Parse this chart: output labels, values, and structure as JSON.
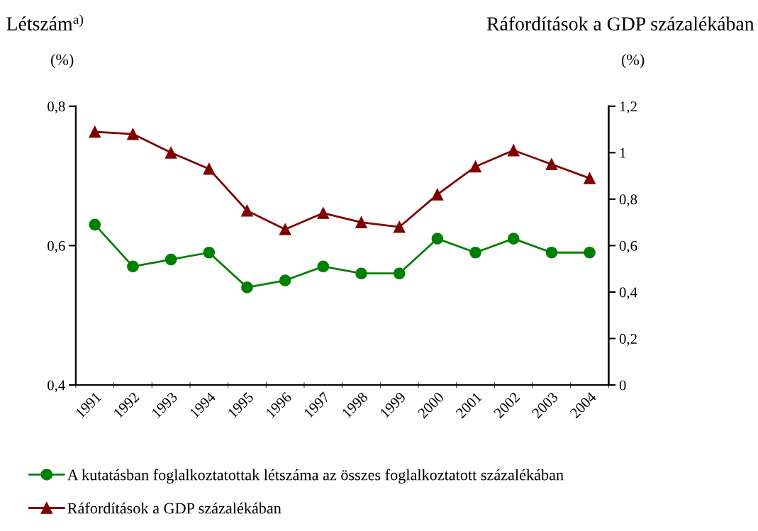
{
  "chart_data": {
    "type": "line",
    "ylabel": "Létszám$^{a)}$",
    "y2label": "Ráfordítások a GDP százalékában",
    "annotations": [
      "(%)",
      "(%)"
    ],
    "categories": [
      "1991",
      "1992",
      "1993",
      "1994",
      "1995",
      "1996",
      "1997",
      "1998",
      "1999",
      "2000",
      "2001",
      "2002",
      "2003",
      "2004"
    ],
    "series": [
      {
        "name": "A kutatásban foglalkoztatottak létszáma az összes foglalkoztatott százalékában",
        "color": "#008000",
        "marker": "circle",
        "values": [
          0.63,
          0.57,
          0.58,
          0.59,
          0.54,
          0.55,
          0.57,
          0.56,
          0.56,
          0.61,
          0.59,
          0.61,
          0.59,
          0.59
        ]
      },
      {
        "name": "Ráfordítások a GDP százalékában",
        "color": "#800000",
        "marker": "triangle",
        "axis": "y2",
        "values": [
          1.09,
          1.08,
          1.0,
          0.93,
          0.75,
          0.67,
          0.74,
          0.7,
          0.68,
          0.82,
          0.94,
          1.01,
          0.95,
          0.89
        ]
      }
    ],
    "ylim": [
      0.4,
      0.8
    ],
    "yticks": [
      {
        "value": 0.4,
        "label": "0,4"
      },
      {
        "value": 0.6,
        "label": "0,6"
      },
      {
        "value": 0.8,
        "label": "0,8"
      }
    ],
    "y2lim": [
      0,
      1.2
    ],
    "y2ticks": [
      0,
      {
        "value": 0.2,
        "label": "0,2"
      },
      {
        "value": 0.4,
        "label": "0,4"
      },
      {
        "value": 0.6,
        "label": "0,6"
      },
      {
        "value": 0.8,
        "label": "0,8"
      },
      {
        "value": 1,
        "label": "1"
      },
      {
        "value": 1.2,
        "label": "1,2"
      }
    ],
    "grid": false,
    "legend": "bottom",
    "line_style": "solid"
  }
}
